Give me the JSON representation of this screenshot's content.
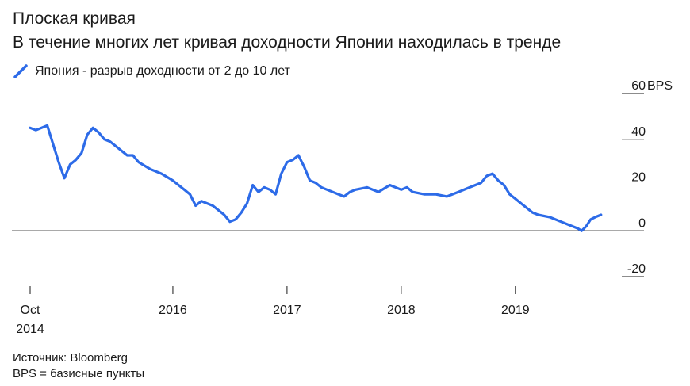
{
  "title": "Плоская кривая",
  "subtitle": "В течение многих лет кривая доходности Японии находилась в тренде",
  "legend": {
    "label": "Япония - разрыв доходности от 2 до 10 лет",
    "color": "#2d6be8"
  },
  "footer": {
    "source": "Источник: Bloomberg",
    "note": "BPS = базисные пункты"
  },
  "chart_data": {
    "type": "line",
    "ylabel_unit": "BPS",
    "ylim": [
      -20,
      60
    ],
    "y_ticks": [
      60,
      40,
      20,
      0,
      -20
    ],
    "x_ticks": [
      {
        "label": "Oct",
        "label2": "2014",
        "x": 2014.75
      },
      {
        "label": "2016",
        "x": 2016.0
      },
      {
        "label": "2017",
        "x": 2017.0
      },
      {
        "label": "2018",
        "x": 2018.0
      },
      {
        "label": "2019",
        "x": 2019.0
      }
    ],
    "xlim": [
      2014.75,
      2019.8
    ],
    "series": [
      {
        "name": "Япония - разрыв доходности от 2 до 10 лет",
        "color": "#2d6be8",
        "x": [
          2014.75,
          2014.8,
          2014.9,
          2014.95,
          2015.0,
          2015.05,
          2015.1,
          2015.15,
          2015.2,
          2015.25,
          2015.3,
          2015.35,
          2015.4,
          2015.45,
          2015.5,
          2015.55,
          2015.6,
          2015.65,
          2015.7,
          2015.8,
          2015.9,
          2016.0,
          2016.05,
          2016.1,
          2016.15,
          2016.2,
          2016.25,
          2016.3,
          2016.35,
          2016.4,
          2016.45,
          2016.5,
          2016.55,
          2016.6,
          2016.65,
          2016.7,
          2016.75,
          2016.8,
          2016.85,
          2016.9,
          2016.95,
          2017.0,
          2017.05,
          2017.1,
          2017.15,
          2017.2,
          2017.25,
          2017.3,
          2017.35,
          2017.4,
          2017.45,
          2017.5,
          2017.55,
          2017.6,
          2017.7,
          2017.8,
          2017.9,
          2018.0,
          2018.05,
          2018.1,
          2018.2,
          2018.3,
          2018.4,
          2018.5,
          2018.6,
          2018.7,
          2018.75,
          2018.8,
          2018.85,
          2018.9,
          2018.95,
          2019.0,
          2019.05,
          2019.1,
          2019.15,
          2019.2,
          2019.3,
          2019.4,
          2019.45,
          2019.5,
          2019.55,
          2019.58,
          2019.62,
          2019.66,
          2019.7,
          2019.75
        ],
        "y": [
          45,
          44,
          46,
          38,
          30,
          23,
          29,
          31,
          34,
          42,
          45,
          43,
          40,
          39,
          37,
          35,
          33,
          33,
          30,
          27,
          25,
          22,
          20,
          18,
          16,
          11,
          13,
          12,
          11,
          9,
          7,
          4,
          5,
          8,
          12,
          20,
          17,
          19,
          18,
          16,
          25,
          30,
          31,
          33,
          28,
          22,
          21,
          19,
          18,
          17,
          16,
          15,
          17,
          18,
          19,
          17,
          20,
          18,
          19,
          17,
          16,
          16,
          15,
          17,
          19,
          21,
          24,
          25,
          22,
          20,
          16,
          14,
          12,
          10,
          8,
          7,
          6,
          4,
          3,
          2,
          1,
          0,
          2,
          5,
          6,
          7
        ]
      }
    ],
    "grid": false,
    "legend_position": "top-left"
  }
}
